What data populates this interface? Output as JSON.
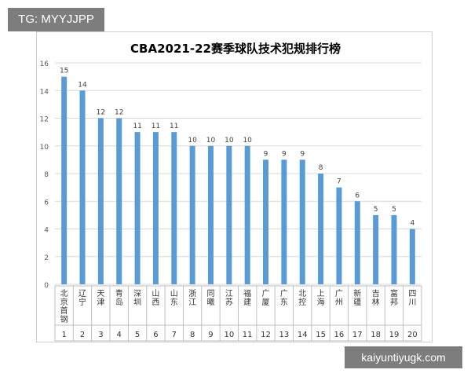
{
  "watermarks": {
    "top": "TG: MYYJJPP",
    "bottom": "kaiyuntiyugk.com"
  },
  "colors": {
    "bar": "#5b9bd5",
    "grid": "#d9d9d9",
    "axis_text": "#595959",
    "label_text": "#404040",
    "title_text": "#2b2b2b"
  },
  "chart_data": {
    "type": "bar",
    "title": "CBA2021-22赛季球队技术犯规排行榜",
    "xlabel": "",
    "ylabel": "",
    "ylim": [
      0,
      16
    ],
    "yticks": [
      0,
      2,
      4,
      6,
      8,
      10,
      12,
      14,
      16
    ],
    "grid": true,
    "legend": "none",
    "categories": [
      "北京首钢",
      "辽宁",
      "天津",
      "青岛",
      "深圳",
      "山西",
      "山东",
      "浙江",
      "同曦",
      "江苏",
      "福建",
      "广厦",
      "广东",
      "北控",
      "上海",
      "广州",
      "新疆",
      "吉林",
      "富邦",
      "四川"
    ],
    "ranks": [
      "1",
      "2",
      "3",
      "4",
      "5",
      "6",
      "7",
      "8",
      "9",
      "10",
      "11",
      "12",
      "13",
      "14",
      "15",
      "16",
      "17",
      "18",
      "19",
      "20"
    ],
    "values": [
      15,
      14,
      12,
      12,
      11,
      11,
      11,
      10,
      10,
      10,
      10,
      9,
      9,
      9,
      8,
      7,
      6,
      5,
      5,
      4
    ]
  }
}
